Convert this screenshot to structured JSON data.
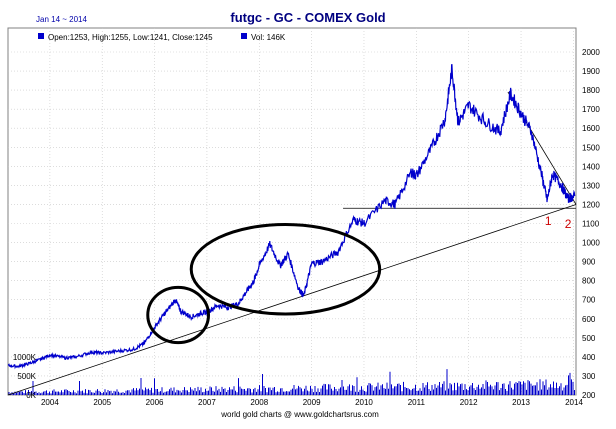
{
  "header": {
    "date": "Jan 14 ~ 2014",
    "title": "futgc - GC - COMEX Gold",
    "ohlc": "Open:1253, High:1255, Low:1241, Close:1245",
    "volume": "Vol: 146K"
  },
  "footer": {
    "source": "world gold charts @ www.goldchartsrus.com"
  },
  "colors": {
    "price": "#0000cc",
    "volume": "#0000cc",
    "annotation": "#000000",
    "marker": "#cc0000",
    "grid": "#c8c8c8",
    "title": "#000080"
  },
  "chart_data": {
    "type": "line",
    "title": "futgc - GC - COMEX Gold",
    "x_ticks": [
      "2004",
      "2005",
      "2006",
      "2007",
      "2008",
      "2009",
      "2010",
      "2011",
      "2012",
      "2013",
      "2014"
    ],
    "xlim": [
      2003.2,
      2014.05
    ],
    "y_ticks": [
      200,
      300,
      400,
      500,
      600,
      700,
      800,
      900,
      1000,
      1100,
      1200,
      1300,
      1400,
      1500,
      1600,
      1700,
      1800,
      1900,
      2000
    ],
    "ylim": [
      200,
      2000
    ],
    "volume_ticks": [
      "0K",
      "500K",
      "1000K"
    ],
    "volume_max_k": 1000,
    "grid": true,
    "legend": "top-left",
    "series": [
      {
        "values": [
          [
            2003.2,
            355
          ],
          [
            2003.4,
            350
          ],
          [
            2003.6,
            365
          ],
          [
            2003.8,
            385
          ],
          [
            2004.0,
            410
          ],
          [
            2004.3,
            395
          ],
          [
            2004.5,
            400
          ],
          [
            2004.8,
            425
          ],
          [
            2005.0,
            420
          ],
          [
            2005.3,
            430
          ],
          [
            2005.6,
            440
          ],
          [
            2005.8,
            470
          ],
          [
            2006.0,
            555
          ],
          [
            2006.2,
            630
          ],
          [
            2006.4,
            700
          ],
          [
            2006.5,
            640
          ],
          [
            2006.7,
            610
          ],
          [
            2006.9,
            630
          ],
          [
            2007.0,
            635
          ],
          [
            2007.2,
            670
          ],
          [
            2007.4,
            660
          ],
          [
            2007.6,
            680
          ],
          [
            2007.75,
            740
          ],
          [
            2007.9,
            800
          ],
          [
            2008.0,
            880
          ],
          [
            2008.2,
            990
          ],
          [
            2008.4,
            880
          ],
          [
            2008.55,
            940
          ],
          [
            2008.75,
            760
          ],
          [
            2008.85,
            720
          ],
          [
            2009.0,
            890
          ],
          [
            2009.2,
            900
          ],
          [
            2009.5,
            950
          ],
          [
            2009.8,
            1120
          ],
          [
            2010.0,
            1100
          ],
          [
            2010.4,
            1220
          ],
          [
            2010.6,
            1200
          ],
          [
            2010.9,
            1370
          ],
          [
            2011.0,
            1350
          ],
          [
            2011.3,
            1500
          ],
          [
            2011.55,
            1650
          ],
          [
            2011.68,
            1910
          ],
          [
            2011.8,
            1630
          ],
          [
            2012.0,
            1720
          ],
          [
            2012.3,
            1640
          ],
          [
            2012.6,
            1580
          ],
          [
            2012.8,
            1780
          ],
          [
            2013.0,
            1680
          ],
          [
            2013.2,
            1580
          ],
          [
            2013.4,
            1350
          ],
          [
            2013.5,
            1220
          ],
          [
            2013.6,
            1360
          ],
          [
            2013.75,
            1310
          ],
          [
            2013.9,
            1230
          ],
          [
            2014.03,
            1245
          ]
        ]
      }
    ],
    "annotations": {
      "trendline": [
        [
          2003.2,
          200
        ],
        [
          2014.05,
          1200
        ]
      ],
      "horizontal_line": {
        "y": 1180,
        "x": [
          2009.6,
          2014.05
        ]
      },
      "downtrend": [
        [
          2012.75,
          1790
        ],
        [
          2014.05,
          1200
        ]
      ],
      "circles": [
        {
          "x": 2006.45,
          "y": 620,
          "rx_years": 0.58,
          "ry_price": 145
        },
        {
          "x": 2008.5,
          "y": 860,
          "rx_years": 1.8,
          "ry_price": 235
        }
      ],
      "markers": [
        {
          "label": "1",
          "x": 2013.52,
          "y": 1145
        },
        {
          "label": "2",
          "x": 2013.9,
          "y": 1130
        }
      ]
    }
  }
}
